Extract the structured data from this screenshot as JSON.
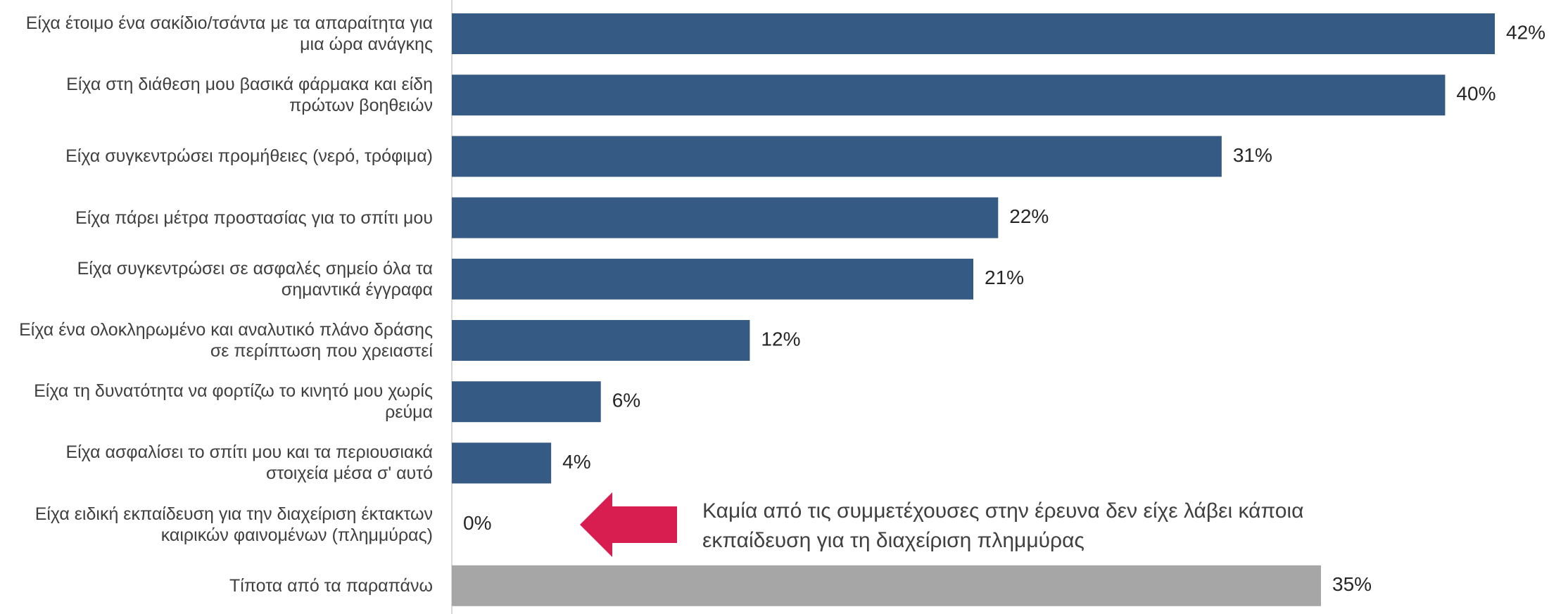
{
  "chart_data": {
    "type": "bar",
    "orientation": "horizontal",
    "categories": [
      "Είχα έτοιμο ένα σακίδιο/τσάντα με τα απαραίτητα για μια ώρα ανάγκης",
      "Είχα στη διάθεση μου βασικά φάρμακα και είδη πρώτων βοηθειών",
      "Είχα συγκεντρώσει προμήθειες (νερό, τρόφιμα)",
      "Είχα πάρει μέτρα προστασίας για το σπίτι μου",
      "Είχα συγκεντρώσει σε ασφαλές σημείο όλα τα σημαντικά έγγραφα",
      "Είχα ένα ολοκληρωμένο και αναλυτικό πλάνο δράσης σε περίπτωση που χρειαστεί",
      "Είχα τη δυνατότητα να φορτίζω το κινητό μου χωρίς ρεύμα",
      "Είχα ασφαλίσει το σπίτι μου και τα περιουσιακά στοιχεία μέσα σ' αυτό",
      "Είχα ειδική εκπαίδευση για την διαχείριση έκτακτων καιρικών φαινομένων (πλημμύρας)",
      "Τίποτα από τα παραπάνω"
    ],
    "values": [
      42,
      40,
      31,
      22,
      21,
      12,
      6,
      4,
      0,
      35
    ],
    "value_labels": [
      "42%",
      "40%",
      "31%",
      "22%",
      "21%",
      "12%",
      "6%",
      "4%",
      "0%",
      "35%"
    ],
    "colors": [
      "#355a84",
      "#355a84",
      "#355a84",
      "#355a84",
      "#355a84",
      "#355a84",
      "#355a84",
      "#355a84",
      "#355a84",
      "#a6a6a6"
    ],
    "xlim": [
      0,
      42
    ],
    "annotation": "Καμία από τις συμμετέχουσες στην έρευνα δεν είχε λάβει κάποια εκπαίδευση για τη διαχείριση πλημμύρας",
    "annotation_arrow_color": "#d81e50"
  }
}
